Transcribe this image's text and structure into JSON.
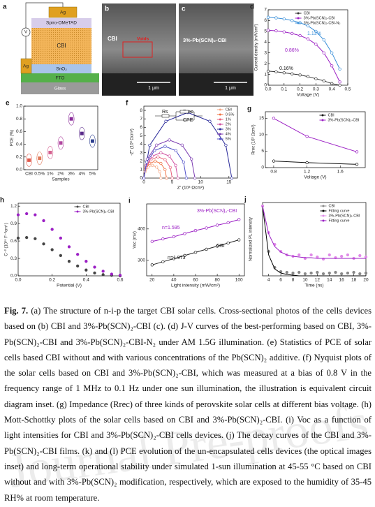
{
  "panels": {
    "a": {
      "letter": "a",
      "layers": [
        "Ag",
        "Spiro-OMeTAD",
        "CBI",
        "SnO₂",
        "FTO",
        "Glass"
      ],
      "electrode": "Ag",
      "meter": "V"
    },
    "b": {
      "letter": "b",
      "label": "CBI",
      "annotation": "Voids",
      "scale": "1 μm"
    },
    "c": {
      "letter": "c",
      "label": "3%-Pb(SCN)₂-CBI",
      "scale": "1 μm"
    },
    "d": {
      "letter": "d",
      "type": "line",
      "xlabel": "Voltage (V)",
      "ylabel": "Current density (mA/cm²)",
      "x": [
        0,
        0.05,
        0.1,
        0.15,
        0.2,
        0.25,
        0.3,
        0.35,
        0.4,
        0.45
      ],
      "xlim": [
        0,
        0.5
      ],
      "ylim": [
        0,
        7
      ],
      "xticks": [
        {
          "value": 0,
          "label": "0.0"
        },
        0.1,
        0.2,
        0.3,
        0.4,
        0.5
      ],
      "yticks": [
        0,
        1,
        2,
        3,
        4,
        5,
        6,
        7
      ],
      "legend": "upper right",
      "series": [
        {
          "name": "CBI",
          "color": "#333333",
          "style": "line+markers",
          "values": [
            1.3,
            1.25,
            1.15,
            1.05,
            0.95,
            0.8,
            0.6,
            0.4,
            0.15,
            0.0
          ]
        },
        {
          "name": "3%-Pb(SCN)₂-CBI",
          "color": "#9b1fc4",
          "style": "line+markers",
          "values": [
            5.1,
            5.05,
            4.95,
            4.8,
            4.6,
            4.3,
            3.8,
            3.0,
            1.8,
            0.3
          ]
        },
        {
          "name": "3%-Pb(SCN)₂-CBI-N₂",
          "color": "#3a8fd8",
          "style": "line+markers",
          "values": [
            6.3,
            6.25,
            6.15,
            6.0,
            5.8,
            5.5,
            5.0,
            4.2,
            3.0,
            1.5
          ]
        }
      ],
      "annotations": [
        "1.13%",
        "0.86%",
        "0.16%"
      ]
    },
    "e": {
      "letter": "e",
      "type": "box",
      "xlabel": "Samples",
      "ylabel": "PCE (%)",
      "categories": [
        "CBI",
        "0.5%",
        "1%",
        "2%",
        "3%",
        "4%",
        "5%"
      ],
      "values": [
        0.15,
        0.18,
        0.27,
        0.42,
        0.8,
        0.57,
        0.45
      ],
      "colors": [
        "#e0584a",
        "#e07a5a",
        "#d4608f",
        "#b0459f",
        "#8a2b9a",
        "#5a2a8a",
        "#2d3f8f"
      ],
      "ylim": [
        0,
        1
      ],
      "yticks": [
        {
          "value": 0,
          "label": "0.0"
        },
        0.2,
        0.4,
        0.6,
        0.8,
        {
          "value": 1,
          "label": "1.0"
        }
      ]
    },
    "f": {
      "letter": "f",
      "type": "line",
      "xlabel": "Z' (10³ Ωcm²)",
      "ylabel": "-Z'' (10³ Ωcm²)",
      "xlim": [
        0,
        16.5
      ],
      "ylim": [
        0,
        8.5
      ],
      "xticks": [
        0,
        5,
        10,
        15
      ],
      "yticks": [
        0,
        1,
        2,
        3,
        4,
        5,
        6,
        7,
        8
      ],
      "legend": "upper right",
      "series": [
        {
          "name": "CBI",
          "color": "#f4a582",
          "style": "line+markers",
          "x": [
            0,
            0.2,
            0.75,
            1.5,
            2.25,
            2.8,
            3
          ],
          "values": [
            0,
            0.75,
            1.3,
            1.5,
            1.3,
            0.75,
            0
          ]
        },
        {
          "name": "0.5%",
          "color": "#f07040",
          "style": "line+markers",
          "x": [
            0,
            0.27,
            1,
            2,
            3,
            3.73,
            4
          ],
          "values": [
            0,
            1,
            1.73,
            2,
            1.73,
            1,
            0
          ]
        },
        {
          "name": "1%",
          "color": "#e8607a",
          "style": "line+markers",
          "x": [
            0,
            0.33,
            1.25,
            2.5,
            3.75,
            4.67,
            5
          ],
          "values": [
            0,
            1.25,
            2.17,
            2.5,
            2.17,
            1.25,
            0
          ]
        },
        {
          "name": "2%",
          "color": "#d04fa0",
          "style": "line+markers",
          "x": [
            0,
            0.4,
            1.5,
            3,
            4.5,
            5.6,
            6
          ],
          "values": [
            0,
            1.5,
            2.6,
            3,
            2.6,
            1.5,
            0
          ]
        },
        {
          "name": "3%",
          "color": "#2a2a9a",
          "style": "line+markers",
          "x": [
            0,
            1.04,
            3.88,
            7.75,
            11.63,
            14.46,
            15.5
          ],
          "values": [
            0,
            3.88,
            6.71,
            7.75,
            6.71,
            3.88,
            0
          ]
        },
        {
          "name": "4%",
          "color": "#7a3ab0",
          "style": "line+markers",
          "x": [
            0,
            0.6,
            2.25,
            4.5,
            6.75,
            8.4,
            9
          ],
          "values": [
            0,
            2.25,
            3.9,
            4.5,
            3.9,
            2.25,
            0
          ]
        },
        {
          "name": "5%",
          "color": "#5050c8",
          "style": "line+markers",
          "x": [
            0,
            0.5,
            1.88,
            3.75,
            5.63,
            7,
            7.5
          ],
          "values": [
            0,
            1.88,
            3.25,
            3.75,
            3.25,
            1.88,
            0
          ]
        }
      ],
      "annotations": [
        "Rs",
        "Rrec",
        "CPE"
      ]
    },
    "g": {
      "letter": "g",
      "type": "line",
      "xlabel": "Voltage (V)",
      "ylabel": "Rrec (10³ Ωcm²)",
      "x": [
        0.8,
        1.2,
        1.8
      ],
      "xlim": [
        0.7,
        1.9
      ],
      "ylim": [
        0,
        17
      ],
      "xticks": [
        0.8,
        1.2,
        1.6
      ],
      "yticks": [
        0,
        5,
        10,
        15
      ],
      "legend": "upper right",
      "series": [
        {
          "name": "CBI",
          "color": "#111111",
          "style": "line+markers",
          "values": [
            2,
            1.5,
            1.0
          ]
        },
        {
          "name": "3%-Pb(SCN)₂-CBI",
          "color": "#9b1fc4",
          "style": "line+markers",
          "values": [
            15,
            9.5,
            4.8
          ]
        }
      ]
    },
    "h": {
      "letter": "h",
      "type": "line",
      "xlabel": "Potential (V)",
      "ylabel": "C⁻² (10¹⁵ F⁻²cm⁴)",
      "x": [
        0,
        0.05,
        0.1,
        0.15,
        0.2,
        0.25,
        0.3,
        0.35,
        0.4,
        0.45,
        0.5,
        0.55,
        0.6
      ],
      "xlim": [
        0,
        0.6
      ],
      "ylim": [
        0,
        1.25
      ],
      "xticks": [
        {
          "value": 0,
          "label": "0.0"
        },
        0.2,
        0.4,
        0.6
      ],
      "yticks": [
        {
          "value": 0,
          "label": "0.0"
        },
        0.3,
        0.6,
        0.9,
        1.2
      ],
      "legend": "upper right",
      "series": [
        {
          "name": "CBI",
          "color": "#444444",
          "style": "scatter",
          "values": [
            0.65,
            0.66,
            0.64,
            0.55,
            0.45,
            0.35,
            0.25,
            0.17,
            0.1,
            0.05,
            0.02,
            0.01,
            0.0
          ]
        },
        {
          "name": "3%-Pb(SCN)₂-CBI",
          "color": "#9b1fc4",
          "style": "scatter",
          "values": [
            1.05,
            1.07,
            1.05,
            0.95,
            0.8,
            0.65,
            0.5,
            0.37,
            0.25,
            0.15,
            0.08,
            0.03,
            0.01
          ]
        }
      ]
    },
    "i": {
      "letter": "i",
      "type": "line",
      "xlabel": "Light intensity (mW/cm²)",
      "ylabel": "Voc (mV)",
      "x": [
        20,
        30,
        40,
        50,
        60,
        70,
        80,
        90,
        100
      ],
      "xlim": [
        15,
        105
      ],
      "ylim": [
        250,
        480
      ],
      "xticks": [
        20,
        40,
        60,
        80,
        100
      ],
      "yticks": [
        300,
        400
      ],
      "series": [
        {
          "name": "CBI",
          "color": "#222222",
          "style": "line+markers",
          "values": [
            285,
            295,
            305,
            315,
            325,
            335,
            345,
            355,
            365
          ]
        },
        {
          "name": "3%-Pb(SCN)₂-CBI",
          "color": "#9b1fc4",
          "style": "line+markers",
          "values": [
            360,
            368,
            375,
            385,
            395,
            403,
            412,
            420,
            430
          ]
        }
      ],
      "annotations": [
        "3%-Pb(SCN)₂-CBI",
        "n=1.595",
        "CBI",
        "n=1.973"
      ]
    },
    "j": {
      "letter": "j",
      "type": "line",
      "xlabel": "Time (ns)",
      "ylabel": "Normalized PL intensity",
      "x": [
        3,
        4,
        5,
        6,
        7,
        8,
        9,
        10,
        11,
        12,
        13,
        14,
        15,
        16,
        17,
        18,
        19,
        20
      ],
      "xlim": [
        3,
        20
      ],
      "ylim": [
        0,
        1.05
      ],
      "xticks": [
        4,
        6,
        8,
        10,
        12,
        14,
        16,
        18,
        20
      ],
      "legend": "upper right",
      "series": [
        {
          "name": "CBI",
          "color": "#888888",
          "style": "scatter",
          "values": [
            1,
            0.35,
            0.12,
            0.06,
            0.05,
            0.04,
            0.05,
            0.03,
            0.04,
            0.05,
            0.03,
            0.04,
            0.05,
            0.03,
            0.04,
            0.05,
            0.03,
            0.04
          ]
        },
        {
          "name": "Fitting curve",
          "color": "#000000",
          "style": "line",
          "values": [
            1,
            0.3,
            0.1,
            0.04,
            0.02,
            0.01,
            0,
            0,
            0,
            0,
            0,
            0,
            0,
            0,
            0,
            0,
            0,
            0
          ]
        },
        {
          "name": "3%-Pb(SCN)₂-CBI",
          "color": "#e08be8",
          "style": "scatter",
          "values": [
            1,
            0.62,
            0.45,
            0.35,
            0.3,
            0.28,
            0.3,
            0.25,
            0.3,
            0.27,
            0.24,
            0.3,
            0.26,
            0.28,
            0.3,
            0.25,
            0.29,
            0.27
          ]
        },
        {
          "name": "Fitting curve",
          "color": "#9b1fc4",
          "style": "line",
          "values": [
            1,
            0.6,
            0.42,
            0.34,
            0.3,
            0.28,
            0.27,
            0.26,
            0.26,
            0.25,
            0.25,
            0.25,
            0.25,
            0.25,
            0.25,
            0.25,
            0.25,
            0.25
          ]
        }
      ]
    }
  },
  "caption": {
    "label": "Fig. 7.",
    "text": "(a) The structure of n-i-p the target CBI solar cells. Cross-sectional photos of the cells devices based on (b) CBI and 3%-Pb(SCN)₂-CBI (c). (d) J-V curves of the best-performing based on CBI, 3%-Pb(SCN)₂-CBI and 3%-Pb(SCN)₂-CBI-N₂ under AM 1.5G illumination. (e) Statistics of PCE of solar cells based CBI without and with various concentrations of the Pb(SCN)₂ additive. (f) Nyquist plots of the solar cells based on CBI and 3%-Pb(SCN)₂-CBI, which was measured at a bias of 0.8 V in the frequency range of 1 MHz to 0.1 Hz under one sun illumination, the illustration is equivalent circuit diagram inset. (g) Impedance (Rrec) of three kinds of perovskite solar cells at different bias voltage. (h) Mott-Schottky plots of the solar cells based on CBI and 3%-Pb(SCN)₂-CBI. (i) Voc as a function of light intensities for CBI and 3%-Pb(SCN)₂-CBI cells devices. (j) The decay curves of the CBI and 3%-Pb(SCN)₂-CBI films. (k) and (l) PCE evolution of the un-encapsulated cells devices (the optical images inset) and long-term operational stability under simulated 1-sun illumination at 45-55 °C based on CBI without and with 3%-Pb(SCN)₂ modification, respectively, which are exposed to the humidity of 35-45 RH% at room temperature."
  },
  "watermark": "Journal Pre-proofs"
}
